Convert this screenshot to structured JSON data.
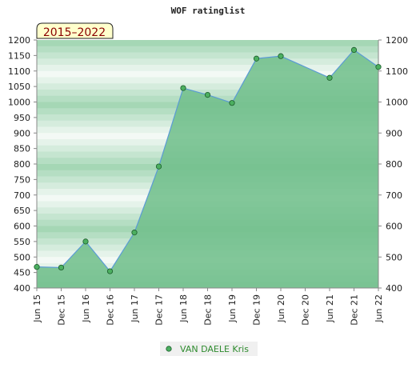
{
  "chart_data": {
    "type": "area",
    "title": "WOF ratinglist",
    "badge": "2015–2022",
    "x": [
      "Jun 15",
      "Dec 15",
      "Jun 16",
      "Dec 16",
      "Jun 17",
      "Dec 17",
      "Jun 18",
      "Dec 18",
      "Jun 19",
      "Dec 19",
      "Jun 20",
      "Dec 20",
      "Jun 21",
      "Dec 21",
      "Jun 22"
    ],
    "series": [
      {
        "name": "VAN DAELE Kris",
        "values": [
          468,
          466,
          550,
          454,
          579,
          792,
          1045,
          1023,
          997,
          1140,
          1148,
          null,
          1078,
          1168,
          1113
        ]
      }
    ],
    "ylim": [
      400,
      1200
    ],
    "y_ticks_left": [
      400,
      450,
      500,
      550,
      600,
      650,
      700,
      750,
      800,
      850,
      900,
      950,
      1000,
      1050,
      1100,
      1150,
      1200
    ],
    "y_ticks_right": [
      400,
      500,
      600,
      700,
      800,
      900,
      1000,
      1100,
      1200
    ],
    "legend_position": "bottom-center",
    "colors": {
      "line": "#5b9bd5",
      "fill": "#7cc495",
      "marker": "#4caf60",
      "badge_bg": "#ffffcc"
    }
  }
}
